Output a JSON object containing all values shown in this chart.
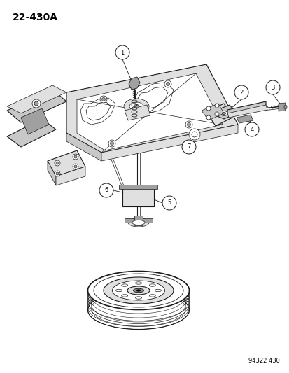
{
  "title": "22-430A",
  "bottom_ref": "94322 430",
  "bg_color": "#ffffff",
  "line_color": "#1a1a1a",
  "fig_width": 4.14,
  "fig_height": 5.33,
  "dpi": 100,
  "gray_fill": "#c8c8c8",
  "light_gray": "#e0e0e0",
  "mid_gray": "#a0a0a0"
}
